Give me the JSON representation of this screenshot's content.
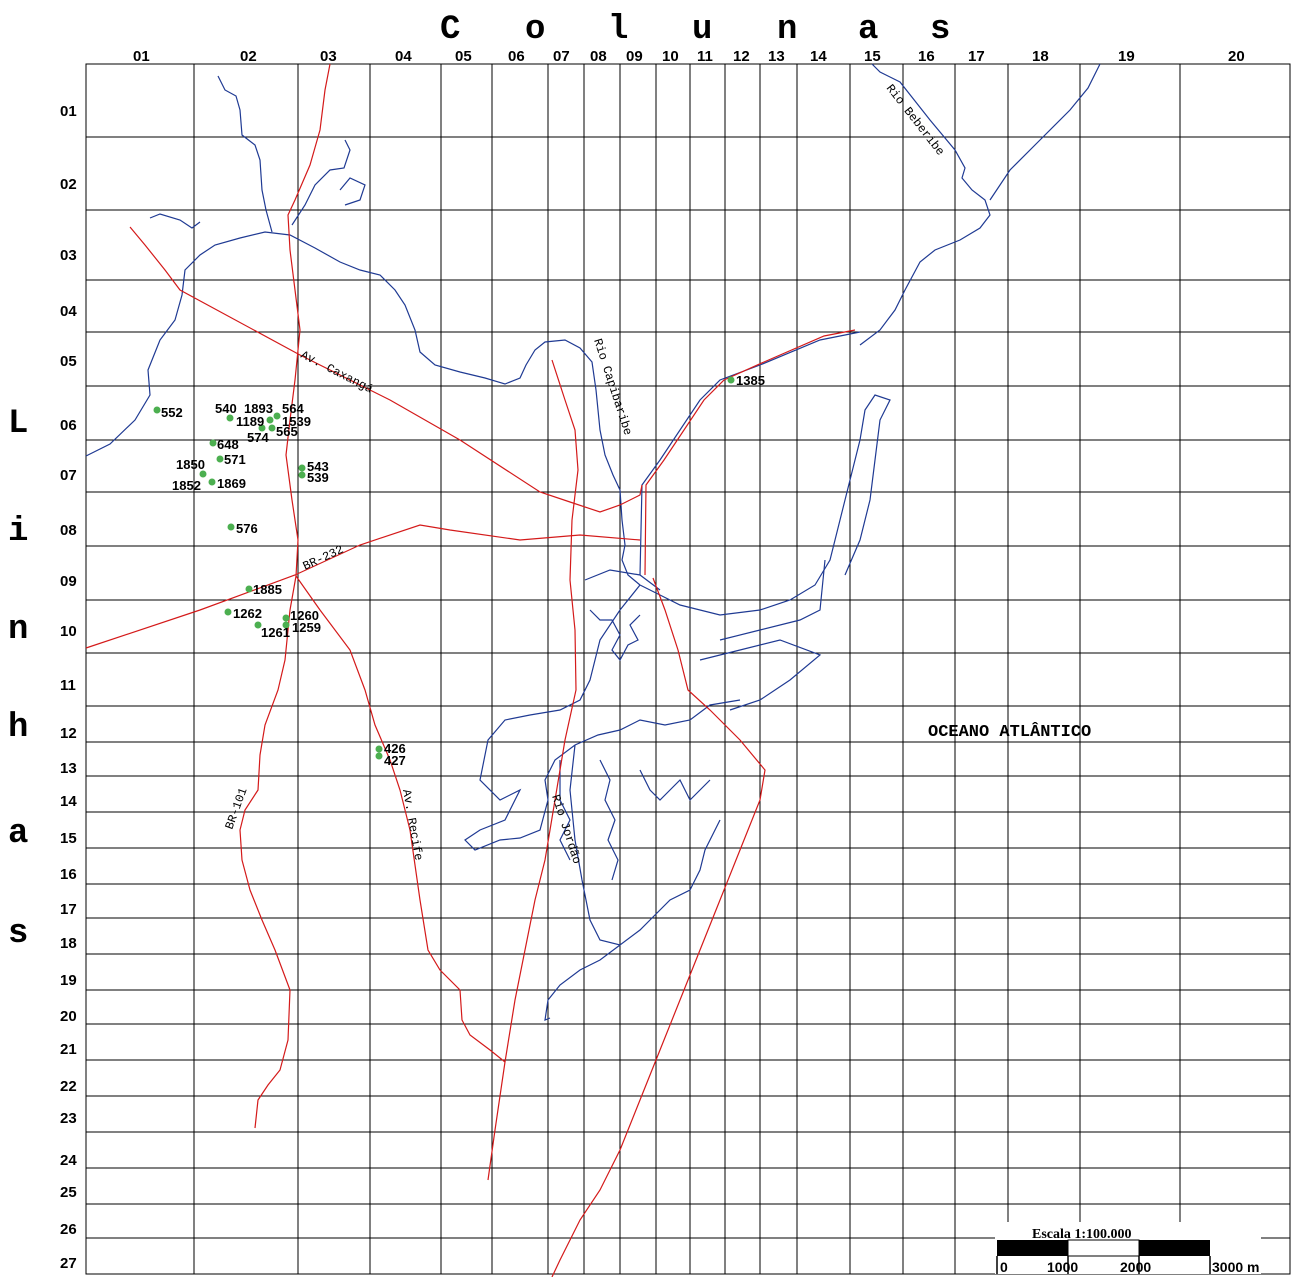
{
  "header": {
    "columns_title": [
      "C",
      "o",
      "l",
      "u",
      "n",
      "a",
      "s"
    ]
  },
  "side": {
    "rows_title": [
      "L",
      "i",
      "n",
      "h",
      "a",
      "s"
    ]
  },
  "grid": {
    "column_labels": [
      "01",
      "02",
      "03",
      "04",
      "05",
      "06",
      "07",
      "08",
      "09",
      "10",
      "11",
      "12",
      "13",
      "14",
      "15",
      "16",
      "17",
      "18",
      "19",
      "20"
    ],
    "row_labels": [
      "01",
      "02",
      "03",
      "04",
      "05",
      "06",
      "07",
      "08",
      "09",
      "10",
      "11",
      "12",
      "13",
      "14",
      "15",
      "16",
      "17",
      "18",
      "19",
      "20",
      "21",
      "22",
      "23",
      "24",
      "25",
      "26",
      "27"
    ]
  },
  "map_labels": {
    "av_caxanga": "Av. Caxangá",
    "rio_capibaribe": "Rio Capibaribe",
    "rio_beberibe": "Rio Beberibe",
    "br_232": "BR-232",
    "br_101": "BR-101",
    "av_recife": "Av. Recife",
    "rio_jordao": "Rio Jordão",
    "ocean": "OCEANO ATLÂNTICO"
  },
  "points": [
    "552",
    "540",
    "1893",
    "564",
    "1189",
    "1539",
    "574",
    "565",
    "648",
    "571",
    "1850",
    "1852",
    "1869",
    "543",
    "539",
    "576",
    "1885",
    "1262",
    "1260",
    "1261",
    "1259",
    "426",
    "427",
    "1385"
  ],
  "scale": {
    "title": "Escala 1:100.000",
    "ticks": [
      "0",
      "1000",
      "2000",
      "3000 m"
    ]
  },
  "colors": {
    "road": "#d41a1a",
    "river": "#1f3a93",
    "point": "#4caf50",
    "grid": "#000000"
  }
}
